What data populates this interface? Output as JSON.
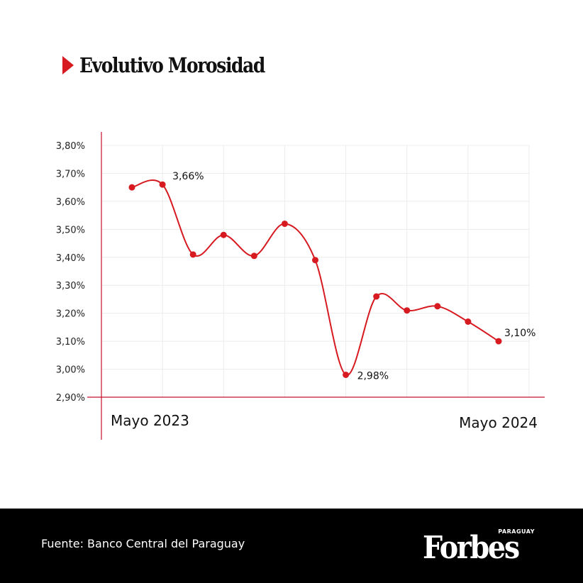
{
  "header": {
    "title": "Evolutivo Morosidad"
  },
  "chart_data": {
    "type": "line",
    "title": "Evolutivo Morosidad",
    "x": [
      "Mayo 2023",
      "",
      "",
      "",
      "",
      "",
      "",
      "",
      "",
      "",
      "",
      "",
      "Mayo 2024"
    ],
    "x_tick_labels": [
      "Mayo 2023",
      "Mayo 2024"
    ],
    "series": [
      {
        "values": [
          3.65,
          3.66,
          3.41,
          3.48,
          3.405,
          3.52,
          3.39,
          2.98,
          3.26,
          3.21,
          3.225,
          3.17,
          3.1
        ]
      }
    ],
    "data_labels": [
      {
        "index": 1,
        "text": "3,66%"
      },
      {
        "index": 7,
        "text": "2,98%"
      },
      {
        "index": 12,
        "text": "3,10%"
      }
    ],
    "y_ticks": [
      2.9,
      3.0,
      3.1,
      3.2,
      3.3,
      3.4,
      3.5,
      3.6,
      3.7,
      3.8
    ],
    "y_tick_labels": [
      "2,90%",
      "3,00%",
      "3,10%",
      "3,20%",
      "3,30%",
      "3,40%",
      "3,50%",
      "3,60%",
      "3,70%",
      "3,80%"
    ],
    "ylim": [
      2.9,
      3.8
    ],
    "grid": true,
    "line_color": "#d71920",
    "axis_color": "#c8102e",
    "grid_color": "#ececec"
  },
  "footer": {
    "source": "Fuente: Banco Central del Paraguay",
    "brand": "Forbes",
    "brand_sub": "PARAGUAY"
  }
}
